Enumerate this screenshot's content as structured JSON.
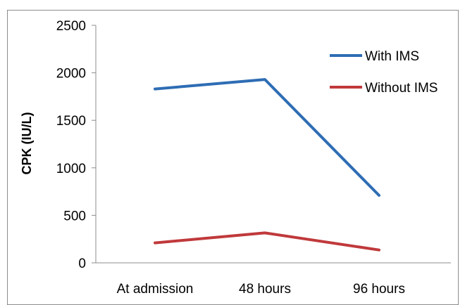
{
  "chart_data": {
    "type": "line",
    "title": "",
    "xlabel": "",
    "ylabel": "CPK (IU/L)",
    "categories": [
      "At admission",
      "48 hours",
      "96 hours"
    ],
    "ylim": [
      0,
      2500
    ],
    "yticks": [
      0,
      500,
      1000,
      1500,
      2000,
      2500
    ],
    "grid": false,
    "legend_position": "top-right",
    "series": [
      {
        "name": "With IMS",
        "values": [
          1830,
          1930,
          710
        ],
        "color": "#2e6db4"
      },
      {
        "name": "Without IMS",
        "values": [
          210,
          315,
          135
        ],
        "color": "#c0393b"
      }
    ]
  }
}
